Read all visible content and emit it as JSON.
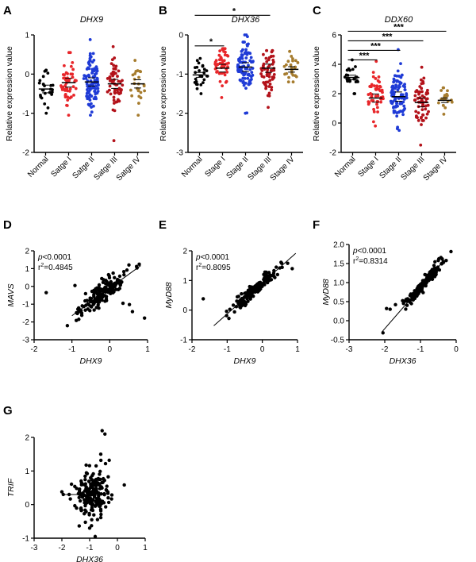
{
  "chart_data": [
    {
      "id": "A",
      "type": "scatter",
      "subtype": "dot-strip",
      "letter": "A",
      "title": "DHX9",
      "ylabel": "Relative expression value",
      "ylim": [
        -2,
        1
      ],
      "yticks": [
        "-2",
        "-1",
        "0",
        "1"
      ],
      "categories": [
        "Normal",
        "Satge I",
        "Satge II",
        "Satge III",
        "Satge IV"
      ],
      "colors": [
        "#000000",
        "#e8262a",
        "#1f3bd6",
        "#b3121a",
        "#a67c2e"
      ],
      "series": [
        {
          "name": "Normal",
          "n": 26,
          "mean": -0.38,
          "sd": 0.28,
          "min": -1.0,
          "max": 0.1
        },
        {
          "name": "Satge I",
          "n": 50,
          "mean": -0.22,
          "sd": 0.32,
          "min": -1.05,
          "max": 0.55
        },
        {
          "name": "Satge II",
          "n": 95,
          "mean": -0.2,
          "sd": 0.3,
          "min": -1.05,
          "max": 0.88
        },
        {
          "name": "Satge III",
          "n": 60,
          "mean": -0.25,
          "sd": 0.33,
          "min": -1.7,
          "max": 0.7
        },
        {
          "name": "Satge IV",
          "n": 24,
          "mean": -0.25,
          "sd": 0.3,
          "min": -1.05,
          "max": 0.35
        }
      ],
      "significance": []
    },
    {
      "id": "B",
      "type": "scatter",
      "subtype": "dot-strip",
      "letter": "B",
      "title": "DHX36",
      "ylabel": "Relative expression value",
      "ylim": [
        -3,
        0
      ],
      "yticks": [
        "-3",
        "-2",
        "-1",
        "0"
      ],
      "categories": [
        "Normal",
        "Stage I",
        "Stage II",
        "Stage III",
        "Stage IV"
      ],
      "colors": [
        "#000000",
        "#e8262a",
        "#1f3bd6",
        "#b3121a",
        "#a67c2e"
      ],
      "series": [
        {
          "name": "Normal",
          "n": 26,
          "mean": -1.02,
          "sd": 0.18,
          "min": -1.5,
          "max": -0.6
        },
        {
          "name": "Stage I",
          "n": 50,
          "mean": -0.85,
          "sd": 0.28,
          "min": -1.6,
          "max": -0.35
        },
        {
          "name": "Stage II",
          "n": 95,
          "mean": -0.82,
          "sd": 0.32,
          "min": -2.0,
          "max": 0.0
        },
        {
          "name": "Stage III",
          "n": 60,
          "mean": -0.85,
          "sd": 0.3,
          "min": -1.85,
          "max": -0.4
        },
        {
          "name": "Stage IV",
          "n": 24,
          "mean": -0.88,
          "sd": 0.2,
          "min": -1.2,
          "max": -0.42
        }
      ],
      "significance": [
        {
          "from": 0,
          "to": 1,
          "y": -0.28,
          "label": "*"
        },
        {
          "from": 0,
          "to": 3,
          "y": 0.5,
          "label": "*"
        }
      ]
    },
    {
      "id": "C",
      "type": "scatter",
      "subtype": "dot-strip",
      "letter": "C",
      "title": "DDX60",
      "ylabel": "Relative expression value",
      "ylim": [
        -2,
        6
      ],
      "yticks": [
        "-2",
        "0",
        "2",
        "4",
        "6"
      ],
      "categories": [
        "Normal",
        "Stage I",
        "Stage II",
        "Stage III",
        "Stage IV"
      ],
      "colors": [
        "#000000",
        "#e8262a",
        "#1f3bd6",
        "#b3121a",
        "#a67c2e"
      ],
      "series": [
        {
          "name": "Normal",
          "n": 24,
          "mean": 3.1,
          "sd": 0.45,
          "min": 2.0,
          "max": 4.3
        },
        {
          "name": "Stage I",
          "n": 50,
          "mean": 1.7,
          "sd": 0.8,
          "min": -0.2,
          "max": 4.2
        },
        {
          "name": "Stage II",
          "n": 95,
          "mean": 1.8,
          "sd": 0.9,
          "min": -0.5,
          "max": 5.0
        },
        {
          "name": "Stage III",
          "n": 60,
          "mean": 1.4,
          "sd": 0.85,
          "min": -1.5,
          "max": 3.8
        },
        {
          "name": "Stage IV",
          "n": 24,
          "mean": 1.55,
          "sd": 0.45,
          "min": 0.6,
          "max": 2.4
        }
      ],
      "significance": [
        {
          "from": 0,
          "to": 1,
          "y": 4.3,
          "label": "***"
        },
        {
          "from": 0,
          "to": 2,
          "y": 4.95,
          "label": "***"
        },
        {
          "from": 0,
          "to": 3,
          "y": 5.6,
          "label": "***"
        },
        {
          "from": 0,
          "to": 4,
          "y": 6.25,
          "label": "***"
        }
      ]
    },
    {
      "id": "D",
      "type": "scatter",
      "letter": "D",
      "xlabel": "DHX9",
      "ylabel": "MAVS",
      "xlim": [
        -2,
        1
      ],
      "ylim": [
        -3,
        2
      ],
      "xticks": [
        "-2",
        "-1",
        "0",
        "1"
      ],
      "yticks": [
        "-3",
        "-2",
        "-1",
        "0",
        "1",
        "2"
      ],
      "p_prefix": "p",
      "p_text": "<0.0001",
      "r2_prefix": "r",
      "r2_sup": "2",
      "r2_text": "=0.4845",
      "fit": {
        "slope": 1.55,
        "intercept": -0.1,
        "x0": -1.0,
        "x1": 0.82
      },
      "n": 170,
      "x_mean": -0.22,
      "x_sd": 0.3,
      "noise": 0.32,
      "outliers": [
        [
          -1.68,
          -0.35
        ],
        [
          0.92,
          -1.78
        ],
        [
          0.78,
          1.25
        ],
        [
          0.52,
          -1.02
        ],
        [
          0.6,
          -1.42
        ],
        [
          0.35,
          -0.95
        ],
        [
          0.71,
          1.12
        ],
        [
          -0.92,
          0.05
        ]
      ]
    },
    {
      "id": "E",
      "type": "scatter",
      "letter": "E",
      "xlabel": "DHX9",
      "ylabel": "MyD88",
      "xlim": [
        -2,
        1
      ],
      "ylim": [
        -1,
        2
      ],
      "xticks": [
        "-2",
        "-1",
        "0",
        "1"
      ],
      "yticks": [
        "-1",
        "0",
        "1",
        "2"
      ],
      "p_prefix": "p",
      "p_text": "<0.0001",
      "r2_prefix": "r",
      "r2_sup": "2",
      "r2_text": "=0.8095",
      "fit": {
        "slope": 1.05,
        "intercept": 0.92,
        "x0": -1.38,
        "x1": 0.95
      },
      "n": 170,
      "x_mean": -0.22,
      "x_sd": 0.3,
      "noise": 0.1,
      "outliers": [
        [
          -1.68,
          0.38
        ],
        [
          0.72,
          1.58
        ],
        [
          0.55,
          1.58
        ],
        [
          0.85,
          1.4
        ],
        [
          -0.95,
          -0.28
        ]
      ]
    },
    {
      "id": "F",
      "type": "scatter",
      "letter": "F",
      "xlabel": "DHX36",
      "ylabel": "MyD88",
      "xlim": [
        -3,
        0
      ],
      "ylim": [
        -0.5,
        2.0
      ],
      "xticks": [
        "-3",
        "-2",
        "-1",
        "0"
      ],
      "yticks": [
        "-0.5",
        "0.0",
        "0.5",
        "1.0",
        "1.5",
        "2.0"
      ],
      "p_prefix": "p",
      "p_text": "<0.0001",
      "r2_prefix": "r",
      "r2_sup": "2",
      "r2_text": "=0.8314",
      "fit": {
        "slope": 1.08,
        "intercept": 1.95,
        "x0": -2.08,
        "x1": -0.35
      },
      "n": 170,
      "x_mean": -0.9,
      "x_sd": 0.3,
      "noise": 0.08,
      "outliers": [
        [
          -2.05,
          -0.32
        ],
        [
          -1.95,
          0.32
        ],
        [
          -1.85,
          0.3
        ],
        [
          -1.7,
          0.42
        ],
        [
          -0.5,
          1.58
        ],
        [
          -0.28,
          1.58
        ],
        [
          -0.62,
          1.45
        ]
      ]
    },
    {
      "id": "G",
      "type": "scatter",
      "letter": "G",
      "xlabel": "DHX36",
      "ylabel": "TRIF",
      "xlim": [
        -3,
        1
      ],
      "ylim": [
        -1,
        2
      ],
      "xticks": [
        "-3",
        "-2",
        "-1",
        "0",
        "1"
      ],
      "yticks": [
        "-1",
        "0",
        "1",
        "2"
      ],
      "fit": {
        "slope": 0.0,
        "intercept": 0.3,
        "x0": -2.0,
        "x1": -0.5
      },
      "n": 190,
      "x_mean": -0.9,
      "x_sd": 0.3,
      "noise": 0.35,
      "outliers": [
        [
          -2.0,
          0.38
        ],
        [
          -1.95,
          0.3
        ],
        [
          -0.55,
          2.2
        ],
        [
          -0.45,
          2.1
        ],
        [
          -0.6,
          1.5
        ],
        [
          -0.8,
          -0.95
        ],
        [
          -1.0,
          -0.7
        ]
      ]
    }
  ]
}
